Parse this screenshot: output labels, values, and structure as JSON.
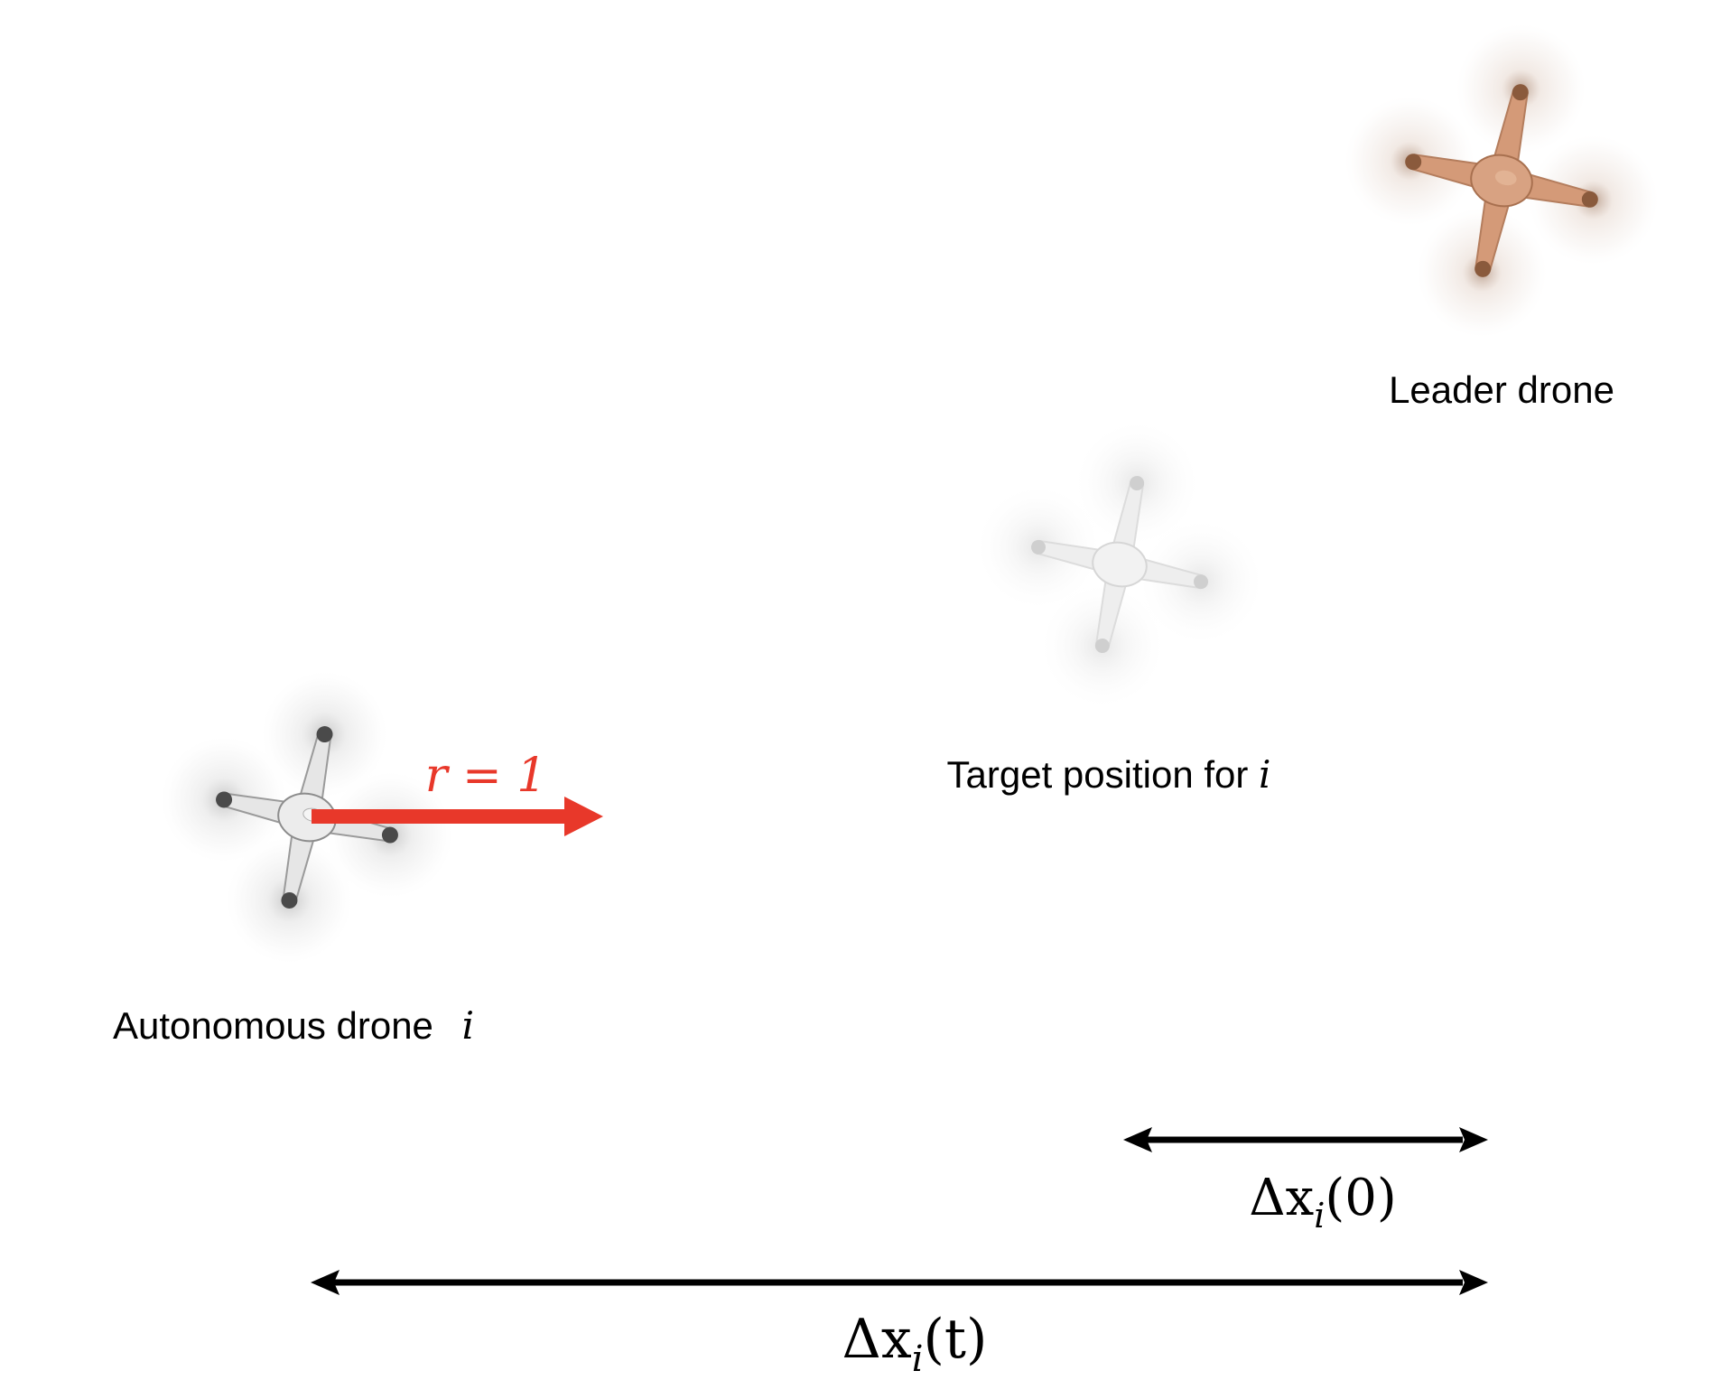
{
  "drones": {
    "leader": {
      "label": "Leader drone",
      "body_color": "#d49a78",
      "motor_color": "#8a5a3c",
      "icon": "quadcopter-icon"
    },
    "target": {
      "label_prefix": "Target position for ",
      "label_var": "i",
      "body_color": "#eeeeee",
      "motor_color": "#cfcfcf",
      "icon": "quadcopter-icon"
    },
    "autonomous": {
      "label_prefix": "Autonomous drone ",
      "label_var": "i",
      "body_color": "#e6e6e6",
      "motor_color": "#4a4a4a",
      "icon": "quadcopter-icon"
    }
  },
  "velocity_arrow": {
    "label": "r = 1",
    "color": "#e8382a"
  },
  "distances": {
    "initial": {
      "label": "Δx",
      "sub": "i",
      "arg": "(0)",
      "color": "#000000"
    },
    "current": {
      "label": "Δx",
      "sub": "i",
      "arg": "(t)",
      "color": "#000000"
    }
  }
}
